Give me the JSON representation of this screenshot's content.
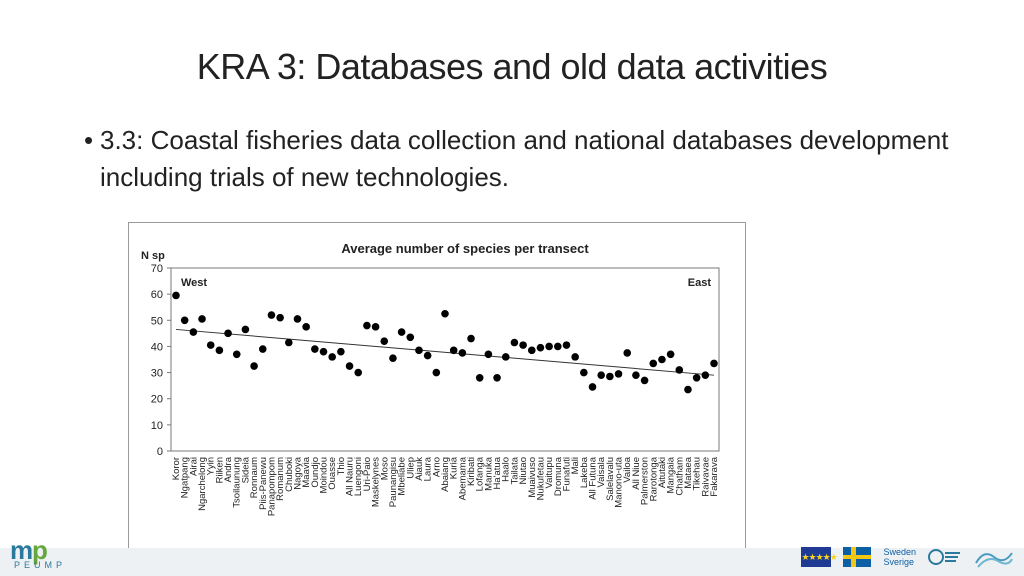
{
  "slide": {
    "title": "KRA 3: Databases and old data activities",
    "bullet_marker": "•",
    "bullet_text": "3.3: Coastal fisheries data collection and national databases development including trials of new technologies."
  },
  "chart_data": {
    "type": "scatter",
    "title": "Average number of species per transect",
    "ylabel": "N sp",
    "xlabel": "",
    "ylim": [
      0,
      70
    ],
    "yticks": [
      0,
      10,
      20,
      30,
      40,
      50,
      60,
      70
    ],
    "annotations": [
      "West",
      "East"
    ],
    "trendline": {
      "start": 46.5,
      "end": 29
    },
    "grid": false,
    "x": [
      "Koror",
      "Ngatpang",
      "Airai",
      "Ngarchelong",
      "Yyin",
      "Riiken",
      "Andra",
      "Tsoilaunung",
      "Sideia",
      "Ronnaum",
      "Piis-Panewu",
      "Panapompom",
      "Romanum",
      "Chuboki",
      "Nagoya",
      "Maavia",
      "Oundjo",
      "Moindou",
      "Ouasse",
      "Thio",
      "All Nauru",
      "Luengoni",
      "Uri-Paio",
      "Maskelynes",
      "Moso",
      "Paunangisu",
      "Mbeliabe",
      "Uliep",
      "Aiauk",
      "Laura",
      "Arno",
      "Abaiang",
      "Kuria",
      "Abemama",
      "Kiribati",
      "Lofanga",
      "Manuka",
      "Ha'atua",
      "Haalo",
      "Tailata",
      "Niutao",
      "Muaivuso",
      "Nukufetau",
      "Vaitupu",
      "Dromuna",
      "Funafuti",
      "Mali",
      "Lakeba",
      "All Futuna",
      "Vaisala",
      "Salelavalu",
      "Manono-uta",
      "Vailoa",
      "All Niue",
      "Palmerston",
      "Rarotonga",
      "Aitutaki",
      "Mangaia",
      "Chatham",
      "Mataea",
      "Tikehau",
      "Raivavae",
      "Fakarava"
    ],
    "values": [
      59.5,
      50,
      45.5,
      50.5,
      40.5,
      38.5,
      45,
      37,
      46.5,
      32.5,
      39,
      52,
      51,
      41.5,
      50.5,
      47.5,
      39,
      38,
      36,
      38,
      32.5,
      30,
      48,
      47.5,
      42,
      35.5,
      45.5,
      43.5,
      38.5,
      36.5,
      30,
      52.5,
      38.5,
      37.5,
      43,
      28,
      37,
      28,
      36,
      41.5,
      40.5,
      38.5,
      39.5,
      40,
      40,
      40.5,
      36,
      30,
      24.5,
      29,
      28.5,
      29.5,
      37.5,
      29,
      27,
      33.5,
      35,
      37,
      31,
      23.5,
      28,
      29,
      33.5
    ],
    "colors": {
      "points": "#000000",
      "trend": "#333333",
      "axis": "#7a7a7a"
    }
  },
  "footer": {
    "left_logo_text": "PEUMP",
    "sweden_label": "Sweden\nSverige",
    "eu_stars": "★★★★★"
  }
}
